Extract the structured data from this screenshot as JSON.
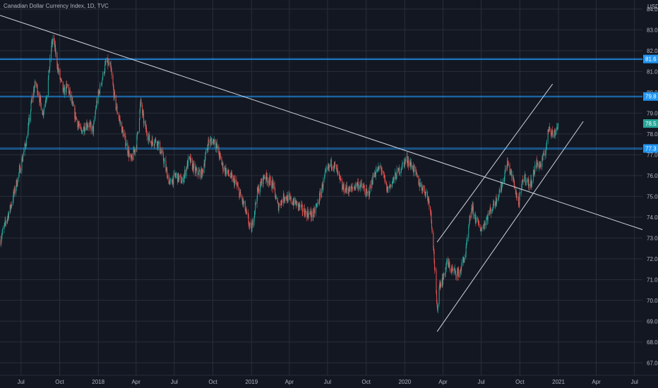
{
  "chart_data": {
    "type": "candlestick",
    "title": "Canadian Dollar Currency Index, 1D, TVC",
    "currency": "USD",
    "ylim": [
      66.4,
      84.3
    ],
    "y_ticks": [
      {
        "value": 84.0,
        "label": "84.0"
      },
      {
        "value": 83.0,
        "label": "83.0"
      },
      {
        "value": 82.0,
        "label": "82.0"
      },
      {
        "value": 81.0,
        "label": "81.0"
      },
      {
        "value": 80.0,
        "label": "80.0"
      },
      {
        "value": 79.0,
        "label": "79.0"
      },
      {
        "value": 78.0,
        "label": "78.0"
      },
      {
        "value": 77.0,
        "label": "77.0"
      },
      {
        "value": 76.0,
        "label": "76.0"
      },
      {
        "value": 75.0,
        "label": "75.0"
      },
      {
        "value": 74.0,
        "label": "74.0"
      },
      {
        "value": 73.0,
        "label": "73.0"
      },
      {
        "value": 72.0,
        "label": "72.0"
      },
      {
        "value": 71.0,
        "label": "71.0"
      },
      {
        "value": 70.0,
        "label": "70.0"
      },
      {
        "value": 69.0,
        "label": "69.0"
      },
      {
        "value": 68.0,
        "label": "68.0"
      },
      {
        "value": 67.0,
        "label": "67.0"
      }
    ],
    "x_range": [
      "2017-05-12",
      "2021-07-20"
    ],
    "x_ticks": [
      {
        "date": "2017-07-01",
        "label": "Jul"
      },
      {
        "date": "2017-10-01",
        "label": "Oct"
      },
      {
        "date": "2018-01-01",
        "label": "2018"
      },
      {
        "date": "2018-04-01",
        "label": "Apr"
      },
      {
        "date": "2018-07-01",
        "label": "Jul"
      },
      {
        "date": "2018-10-01",
        "label": "Oct"
      },
      {
        "date": "2019-01-01",
        "label": "2019"
      },
      {
        "date": "2019-04-01",
        "label": "Apr"
      },
      {
        "date": "2019-07-01",
        "label": "Jul"
      },
      {
        "date": "2019-10-01",
        "label": "Oct"
      },
      {
        "date": "2020-01-01",
        "label": "2020"
      },
      {
        "date": "2020-04-01",
        "label": "Apr"
      },
      {
        "date": "2020-07-01",
        "label": "Jul"
      },
      {
        "date": "2020-10-01",
        "label": "Oct"
      },
      {
        "date": "2021-01-01",
        "label": "2021"
      },
      {
        "date": "2021-04-01",
        "label": "Apr"
      },
      {
        "date": "2021-07-01",
        "label": "Jul"
      }
    ],
    "price_path": [
      [
        "2017-05-12",
        72.9
      ],
      [
        "2017-06-05",
        74.4
      ],
      [
        "2017-06-25",
        76.0
      ],
      [
        "2017-07-15",
        77.8
      ],
      [
        "2017-07-28",
        79.8
      ],
      [
        "2017-08-05",
        80.5
      ],
      [
        "2017-08-22",
        79.0
      ],
      [
        "2017-09-01",
        80.0
      ],
      [
        "2017-09-12",
        82.3
      ],
      [
        "2017-09-16",
        82.6
      ],
      [
        "2017-09-28",
        81.0
      ],
      [
        "2017-10-10",
        80.0
      ],
      [
        "2017-10-20",
        80.3
      ],
      [
        "2017-11-05",
        79.0
      ],
      [
        "2017-11-20",
        78.1
      ],
      [
        "2017-12-05",
        78.5
      ],
      [
        "2017-12-20",
        78.2
      ],
      [
        "2017-12-28",
        79.5
      ],
      [
        "2018-01-20",
        81.5
      ],
      [
        "2018-01-30",
        81.2
      ],
      [
        "2018-02-10",
        79.5
      ],
      [
        "2018-02-28",
        78.1
      ],
      [
        "2018-03-20",
        76.7
      ],
      [
        "2018-04-02",
        77.5
      ],
      [
        "2018-04-12",
        79.5
      ],
      [
        "2018-04-20",
        78.5
      ],
      [
        "2018-05-05",
        77.6
      ],
      [
        "2018-05-20",
        77.7
      ],
      [
        "2018-06-05",
        76.8
      ],
      [
        "2018-06-20",
        75.6
      ],
      [
        "2018-07-05",
        76.0
      ],
      [
        "2018-07-20",
        75.7
      ],
      [
        "2018-08-05",
        76.8
      ],
      [
        "2018-08-20",
        76.2
      ],
      [
        "2018-09-05",
        76.1
      ],
      [
        "2018-09-20",
        77.6
      ],
      [
        "2018-10-05",
        77.7
      ],
      [
        "2018-10-25",
        76.4
      ],
      [
        "2018-11-10",
        76.0
      ],
      [
        "2018-11-25",
        75.6
      ],
      [
        "2018-12-15",
        74.5
      ],
      [
        "2018-12-31",
        73.3
      ],
      [
        "2019-01-15",
        75.2
      ],
      [
        "2019-02-01",
        76.0
      ],
      [
        "2019-02-20",
        75.6
      ],
      [
        "2019-03-05",
        74.5
      ],
      [
        "2019-03-20",
        75.0
      ],
      [
        "2019-04-05",
        74.8
      ],
      [
        "2019-04-20",
        74.6
      ],
      [
        "2019-05-10",
        74.2
      ],
      [
        "2019-05-28",
        74.1
      ],
      [
        "2019-06-10",
        74.8
      ],
      [
        "2019-06-25",
        76.0
      ],
      [
        "2019-07-10",
        76.6
      ],
      [
        "2019-07-20",
        76.4
      ],
      [
        "2019-08-05",
        75.4
      ],
      [
        "2019-08-25",
        75.3
      ],
      [
        "2019-09-10",
        75.6
      ],
      [
        "2019-09-25",
        75.4
      ],
      [
        "2019-10-05",
        75.0
      ],
      [
        "2019-10-20",
        76.1
      ],
      [
        "2019-11-05",
        76.4
      ],
      [
        "2019-11-20",
        75.3
      ],
      [
        "2019-12-05",
        75.8
      ],
      [
        "2019-12-20",
        76.3
      ],
      [
        "2020-01-05",
        76.8
      ],
      [
        "2020-01-20",
        76.4
      ],
      [
        "2020-02-05",
        75.6
      ],
      [
        "2020-02-20",
        75.2
      ],
      [
        "2020-03-01",
        74.6
      ],
      [
        "2020-03-08",
        73.0
      ],
      [
        "2020-03-18",
        69.5
      ],
      [
        "2020-03-24",
        70.8
      ],
      [
        "2020-04-01",
        71.0
      ],
      [
        "2020-04-10",
        71.8
      ],
      [
        "2020-04-25",
        71.4
      ],
      [
        "2020-05-10",
        71.3
      ],
      [
        "2020-05-25",
        72.3
      ],
      [
        "2020-06-08",
        74.5
      ],
      [
        "2020-06-20",
        73.8
      ],
      [
        "2020-07-01",
        73.4
      ],
      [
        "2020-07-20",
        74.2
      ],
      [
        "2020-08-05",
        74.8
      ],
      [
        "2020-08-20",
        75.6
      ],
      [
        "2020-09-01",
        76.6
      ],
      [
        "2020-09-15",
        75.8
      ],
      [
        "2020-09-28",
        74.6
      ],
      [
        "2020-10-10",
        76.0
      ],
      [
        "2020-10-25",
        75.5
      ],
      [
        "2020-11-10",
        76.6
      ],
      [
        "2020-11-20",
        76.5
      ],
      [
        "2020-12-01",
        77.2
      ],
      [
        "2020-12-10",
        78.4
      ],
      [
        "2020-12-20",
        77.9
      ],
      [
        "2020-12-31",
        78.5
      ]
    ],
    "horizontal_lines": [
      {
        "price": 81.6,
        "label": "81.6",
        "color": "#2196f3"
      },
      {
        "price": 79.8,
        "label": "79.8",
        "color": "#2196f3"
      },
      {
        "price": 77.3,
        "label": "77.3",
        "color": "#2196f3"
      }
    ],
    "last_price": {
      "price": 78.5,
      "label": "78.5",
      "color": "#26a69a"
    },
    "trendlines": [
      {
        "from": [
          "2017-05-12",
          83.7
        ],
        "to": [
          "2021-07-20",
          73.4
        ]
      },
      {
        "from": [
          "2020-03-18",
          72.8
        ],
        "to": [
          "2020-12-18",
          80.4
        ]
      },
      {
        "from": [
          "2020-03-18",
          68.5
        ],
        "to": [
          "2021-03-01",
          78.6
        ]
      }
    ],
    "colors": {
      "background": "#131722",
      "grid": "#2a2e39",
      "up": "#26a69a",
      "down": "#ef5350",
      "text": "#b2b5be",
      "trendline": "#d1d4dc"
    }
  }
}
